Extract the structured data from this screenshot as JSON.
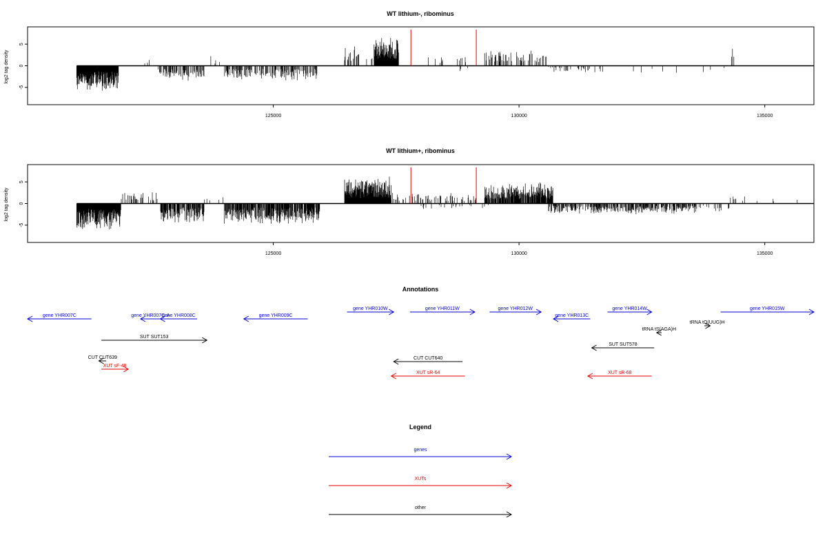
{
  "chart_data": [
    {
      "type": "bar",
      "title": "WT lithium-, ribominus",
      "ylabel": "log2 tag density",
      "xlim": [
        120000,
        136000
      ],
      "ylim": [
        -9,
        9
      ],
      "yticks": [
        -5,
        0,
        5
      ],
      "xticks": [
        125000,
        130000,
        135000
      ],
      "markers": [
        127800,
        129130
      ],
      "colors": {
        "bars": "#000000",
        "markers": "#e00000"
      },
      "segments": [
        {
          "from": 121000,
          "to": 121850,
          "sign": -1,
          "amp": 6.5,
          "density": 1.0
        },
        {
          "from": 122300,
          "to": 122600,
          "sign": 1,
          "amp": 2.0,
          "density": 0.05
        },
        {
          "from": 122650,
          "to": 123600,
          "sign": -1,
          "amp": 3.5,
          "density": 0.55
        },
        {
          "from": 123700,
          "to": 124000,
          "sign": 1,
          "amp": 2.5,
          "density": 0.05
        },
        {
          "from": 124000,
          "to": 125900,
          "sign": -1,
          "amp": 3.5,
          "density": 0.45
        },
        {
          "from": 126450,
          "to": 126750,
          "sign": 1,
          "amp": 4.5,
          "density": 0.4
        },
        {
          "from": 126750,
          "to": 127050,
          "sign": 1,
          "amp": 2.5,
          "density": 0.08
        },
        {
          "from": 127050,
          "to": 127550,
          "sign": 1,
          "amp": 6.8,
          "density": 1.0
        },
        {
          "from": 128000,
          "to": 129000,
          "sign": 1,
          "amp": 2.2,
          "density": 0.05
        },
        {
          "from": 128700,
          "to": 129100,
          "sign": -1,
          "amp": 2.0,
          "density": 0.05
        },
        {
          "from": 129300,
          "to": 130600,
          "sign": 1,
          "amp": 3.8,
          "density": 0.35
        },
        {
          "from": 130600,
          "to": 131500,
          "sign": -1,
          "amp": 1.5,
          "density": 0.15
        },
        {
          "from": 131500,
          "to": 133400,
          "sign": -1,
          "amp": 1.8,
          "density": 0.06
        },
        {
          "from": 133600,
          "to": 134300,
          "sign": -1,
          "amp": 1.5,
          "density": 0.03
        },
        {
          "from": 134300,
          "to": 134400,
          "sign": 1,
          "amp": 5.5,
          "density": 0.05
        }
      ]
    },
    {
      "type": "bar",
      "title": "WT lithium+, ribominus",
      "ylabel": "log2 tag density",
      "xlim": [
        120000,
        136000
      ],
      "ylim": [
        -9,
        9
      ],
      "yticks": [
        -5,
        0,
        5
      ],
      "xticks": [
        125000,
        130000,
        135000
      ],
      "markers": [
        127800,
        129130
      ],
      "colors": {
        "bars": "#000000",
        "markers": "#e00000"
      },
      "segments": [
        {
          "from": 121000,
          "to": 121900,
          "sign": -1,
          "amp": 6.5,
          "density": 1.0
        },
        {
          "from": 121900,
          "to": 122650,
          "sign": 1,
          "amp": 2.8,
          "density": 0.25
        },
        {
          "from": 122700,
          "to": 123600,
          "sign": -1,
          "amp": 4.5,
          "density": 0.75
        },
        {
          "from": 123600,
          "to": 124000,
          "sign": 1,
          "amp": 2.0,
          "density": 0.1
        },
        {
          "from": 124000,
          "to": 125950,
          "sign": -1,
          "amp": 5.0,
          "density": 0.8
        },
        {
          "from": 126450,
          "to": 127400,
          "sign": 1,
          "amp": 6.5,
          "density": 1.0
        },
        {
          "from": 127400,
          "to": 129200,
          "sign": 1,
          "amp": 2.5,
          "density": 0.25
        },
        {
          "from": 128000,
          "to": 129400,
          "sign": -1,
          "amp": 1.5,
          "density": 0.08
        },
        {
          "from": 129300,
          "to": 130700,
          "sign": 1,
          "amp": 5.0,
          "density": 0.9
        },
        {
          "from": 130600,
          "to": 133600,
          "sign": -1,
          "amp": 2.5,
          "density": 0.55
        },
        {
          "from": 133600,
          "to": 134300,
          "sign": -1,
          "amp": 2.0,
          "density": 0.15
        },
        {
          "from": 134300,
          "to": 135900,
          "sign": 1,
          "amp": 2.0,
          "density": 0.05
        }
      ]
    }
  ],
  "annotations": {
    "title": "Annotations",
    "items": [
      {
        "label": "gene YHR007C",
        "from": 120000,
        "to": 121300,
        "dir": "left",
        "row": 0,
        "color": "#0000d0"
      },
      {
        "label": "gene YHR007C-A",
        "from": 122300,
        "to": 122700,
        "dir": "left",
        "row": 0,
        "color": "#0000d0"
      },
      {
        "label": "gene YHR008C",
        "from": 122700,
        "to": 123450,
        "dir": "left",
        "row": 0,
        "color": "#0000d0"
      },
      {
        "label": "gene YHR009C",
        "from": 124400,
        "to": 125700,
        "dir": "left",
        "row": 0,
        "color": "#0000d0"
      },
      {
        "label": "gene YHR010W",
        "from": 126500,
        "to": 127450,
        "dir": "right",
        "row": 1,
        "color": "#0000d0"
      },
      {
        "label": "gene YHR011W",
        "from": 127780,
        "to": 129100,
        "dir": "right",
        "row": 1,
        "color": "#0000d0"
      },
      {
        "label": "gene YHR012W",
        "from": 129400,
        "to": 130450,
        "dir": "right",
        "row": 1,
        "color": "#0000d0"
      },
      {
        "label": "gene YHR013C",
        "from": 130700,
        "to": 131450,
        "dir": "left",
        "row": 0,
        "color": "#0000d0"
      },
      {
        "label": "gene YHR014W",
        "from": 131800,
        "to": 132700,
        "dir": "right",
        "row": 1,
        "color": "#0000d0"
      },
      {
        "label": "gene YHR015W",
        "from": 134100,
        "to": 136000,
        "dir": "right",
        "row": 1,
        "color": "#0000d0"
      },
      {
        "label": "tRNA tS(AGA)H",
        "from": 132800,
        "to": 132900,
        "dir": "left",
        "row": 2,
        "color": "#000000"
      },
      {
        "label": "tRNA tQ(UUG)H",
        "from": 133770,
        "to": 133890,
        "dir": "right",
        "row": 3,
        "color": "#000000"
      },
      {
        "label": "SUT SUT153",
        "from": 121500,
        "to": 123650,
        "dir": "right",
        "row": 4,
        "color": "#000000"
      },
      {
        "label": "SUT SUT578",
        "from": 131480,
        "to": 132750,
        "dir": "left",
        "row": 5,
        "color": "#000000"
      },
      {
        "label": "CUT CUT639",
        "from": 121450,
        "to": 121600,
        "dir": "left",
        "row": 6,
        "color": "#000000"
      },
      {
        "label": "XUT sF-48",
        "from": 121500,
        "to": 122050,
        "dir": "right",
        "row": 7,
        "color": "#e00000"
      },
      {
        "label": "CUT CUT640",
        "from": 127450,
        "to": 128850,
        "dir": "left",
        "row": 8,
        "color": "#000000"
      },
      {
        "label": "XUT sR-64",
        "from": 127400,
        "to": 128900,
        "dir": "left",
        "row": 9,
        "color": "#e00000"
      },
      {
        "label": "XUT sR-68",
        "from": 131400,
        "to": 132700,
        "dir": "left",
        "row": 9,
        "color": "#e00000"
      }
    ]
  },
  "legend": {
    "title": "Legend",
    "entries": [
      {
        "label": "genes",
        "color": "#0000d0"
      },
      {
        "label": "XUTs",
        "color": "#e00000"
      },
      {
        "label": "other",
        "color": "#000000"
      }
    ]
  }
}
